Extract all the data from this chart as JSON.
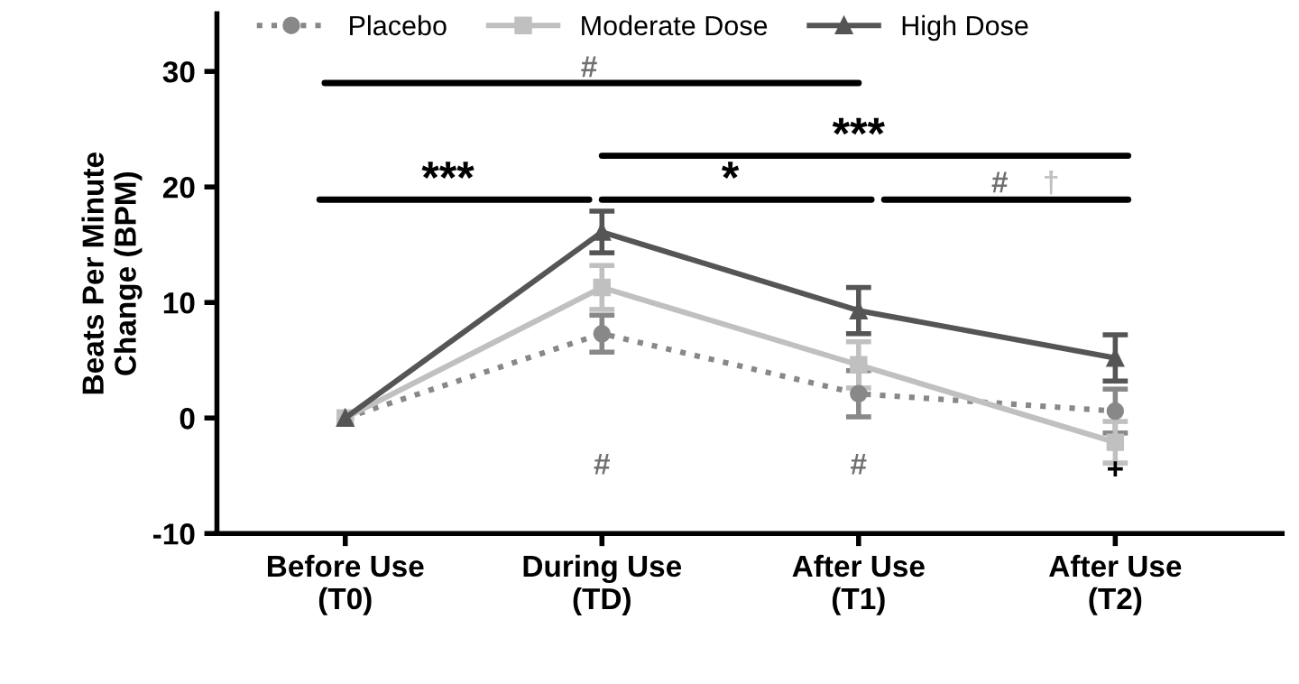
{
  "chart_data": {
    "type": "line",
    "ylabel": "Beats Per Minute\nChange (BPM)",
    "categories": [
      "Before Use\n(T0)",
      "During Use\n(TD)",
      "After Use\n(T1)",
      "After Use\n(T2)"
    ],
    "series": [
      {
        "name": "Placebo",
        "color": "#888888",
        "marker": "circle",
        "line_style": "dotted",
        "values": [
          0,
          7.3,
          2.1,
          0.6
        ],
        "errors": [
          null,
          1.6,
          2.0,
          1.9
        ]
      },
      {
        "name": "Moderate Dose",
        "color": "#c0c0c0",
        "marker": "square",
        "line_style": "solid",
        "values": [
          0,
          11.3,
          4.6,
          -2.1
        ],
        "errors": [
          null,
          1.9,
          2.0,
          1.8
        ]
      },
      {
        "name": "High Dose",
        "color": "#555555",
        "marker": "triangle",
        "line_style": "solid",
        "values": [
          0,
          16.1,
          9.3,
          5.2
        ],
        "errors": [
          null,
          1.8,
          2.0,
          2.0
        ]
      }
    ],
    "ylim": [
      -10,
      35
    ],
    "yticks": [
      -10,
      0,
      10,
      20,
      30
    ],
    "grid": false,
    "legend": "top",
    "annotations": [
      "#",
      "***",
      "*",
      "***",
      "#",
      "†",
      "#",
      "#",
      "+"
    ]
  }
}
